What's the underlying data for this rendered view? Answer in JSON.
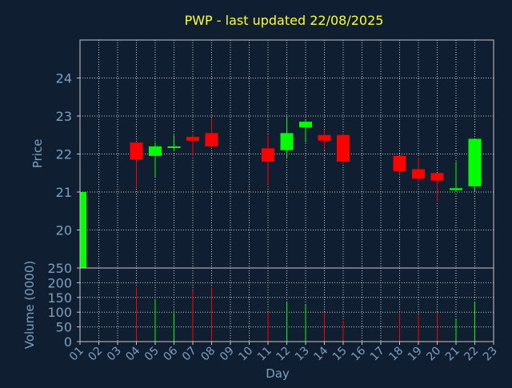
{
  "colors": {
    "background": "#0f1e30",
    "title": "#ffff33",
    "axis_text": "#7f9fbf",
    "grid": "#c8c8c8",
    "frame": "#c8c8c8",
    "up": "#00ff00",
    "down": "#ff0000"
  },
  "chart_data": {
    "type": "candlestick",
    "title": "PWP - last updated 22/08/2025",
    "xlabel": "Day",
    "x_ticks": [
      "01",
      "02",
      "03",
      "04",
      "05",
      "06",
      "07",
      "08",
      "09",
      "10",
      "11",
      "12",
      "13",
      "14",
      "15",
      "16",
      "17",
      "18",
      "19",
      "20",
      "21",
      "22",
      "23"
    ],
    "price": {
      "ylabel": "Price",
      "ylim": [
        19.0,
        25.0
      ],
      "y_ticks": [
        20,
        21,
        22,
        23,
        24
      ],
      "grid": true,
      "candles": [
        {
          "day": "01",
          "open": 19.0,
          "close": 21.0,
          "high": 21.0,
          "low": 19.0
        },
        {
          "day": "04",
          "open": 22.3,
          "close": 21.85,
          "high": 22.3,
          "low": 21.1
        },
        {
          "day": "05",
          "open": 21.95,
          "close": 22.2,
          "high": 22.3,
          "low": 21.4
        },
        {
          "day": "06",
          "open": 22.17,
          "close": 22.2,
          "high": 22.5,
          "low": 22.1
        },
        {
          "day": "07",
          "open": 22.45,
          "close": 22.35,
          "high": 22.55,
          "low": 21.95
        },
        {
          "day": "08",
          "open": 22.55,
          "close": 22.2,
          "high": 22.95,
          "low": 22.15
        },
        {
          "day": "11",
          "open": 22.15,
          "close": 21.8,
          "high": 22.5,
          "low": 21.2
        },
        {
          "day": "12",
          "open": 22.1,
          "close": 22.55,
          "high": 23.0,
          "low": 21.9
        },
        {
          "day": "13",
          "open": 22.7,
          "close": 22.85,
          "high": 22.9,
          "low": 22.3
        },
        {
          "day": "14",
          "open": 22.5,
          "close": 22.35,
          "high": 22.65,
          "low": 22.1
        },
        {
          "day": "15",
          "open": 22.5,
          "close": 21.8,
          "high": 22.55,
          "low": 21.75
        },
        {
          "day": "18",
          "open": 21.95,
          "close": 21.55,
          "high": 21.95,
          "low": 21.45
        },
        {
          "day": "19",
          "open": 21.6,
          "close": 21.35,
          "high": 21.9,
          "low": 21.25
        },
        {
          "day": "20",
          "open": 21.5,
          "close": 21.3,
          "high": 21.5,
          "low": 20.75
        },
        {
          "day": "21",
          "open": 21.05,
          "close": 21.1,
          "high": 21.8,
          "low": 21.0
        },
        {
          "day": "22",
          "open": 21.15,
          "close": 22.4,
          "high": 22.4,
          "low": 21.0
        }
      ]
    },
    "volume": {
      "ylabel": "Volume (0000)",
      "ylim": [
        0,
        250
      ],
      "y_ticks": [
        0,
        50,
        100,
        150,
        200,
        250
      ],
      "grid": true,
      "bars": [
        {
          "day": "04",
          "value": 185,
          "direction": "down"
        },
        {
          "day": "05",
          "value": 145,
          "direction": "up"
        },
        {
          "day": "06",
          "value": 105,
          "direction": "up"
        },
        {
          "day": "07",
          "value": 175,
          "direction": "down"
        },
        {
          "day": "08",
          "value": 185,
          "direction": "down"
        },
        {
          "day": "11",
          "value": 100,
          "direction": "down"
        },
        {
          "day": "12",
          "value": 135,
          "direction": "up"
        },
        {
          "day": "13",
          "value": 125,
          "direction": "up"
        },
        {
          "day": "14",
          "value": 100,
          "direction": "down"
        },
        {
          "day": "15",
          "value": 72,
          "direction": "down"
        },
        {
          "day": "18",
          "value": 100,
          "direction": "down"
        },
        {
          "day": "19",
          "value": 90,
          "direction": "down"
        },
        {
          "day": "20",
          "value": 100,
          "direction": "down"
        },
        {
          "day": "21",
          "value": 78,
          "direction": "up"
        },
        {
          "day": "22",
          "value": 135,
          "direction": "up"
        }
      ]
    }
  }
}
